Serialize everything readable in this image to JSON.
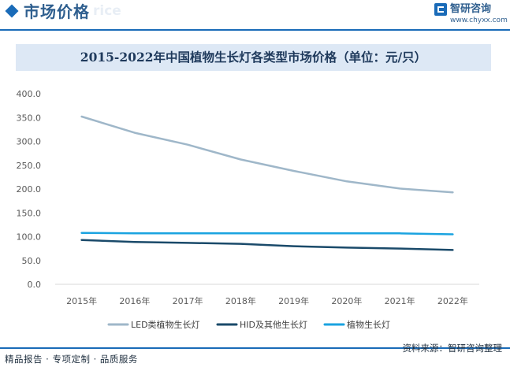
{
  "header": {
    "title": "市场价格",
    "watermark": "rice",
    "logo_name": "智研咨询",
    "logo_url": "www.chyxx.com"
  },
  "colors": {
    "brand": "#1a6bb8",
    "header_text": "#2f5f8f",
    "title_bar": "#dde8f5",
    "led": "#9fb7c9",
    "hid": "#1a4a6a",
    "plant": "#1aa3e0"
  },
  "footer": {
    "left": "精品报告 · 专项定制 · 品质服务",
    "source": "资料来源：智研咨询整理"
  },
  "chart_data": {
    "type": "line",
    "title": "2015-2022年中国植物生长灯各类型市场价格（单位：元/只）",
    "categories": [
      "2015年",
      "2016年",
      "2017年",
      "2018年",
      "2019年",
      "2020年",
      "2021年",
      "2022年"
    ],
    "ylim": [
      0,
      400
    ],
    "y_ticks": [
      "0.0",
      "50.0",
      "100.0",
      "150.0",
      "200.0",
      "250.0",
      "300.0",
      "350.0",
      "400.0"
    ],
    "grid": false,
    "legend_position": "bottom",
    "series": [
      {
        "name": "LED类植物生长灯",
        "color": "#9fb7c9",
        "values": [
          352,
          318,
          293,
          262,
          238,
          216,
          201,
          193
        ]
      },
      {
        "name": "HID及其他生长灯",
        "color": "#1a4a6a",
        "values": [
          93,
          89,
          87,
          85,
          80,
          77,
          75,
          72
        ]
      },
      {
        "name": "植物生长灯",
        "color": "#1aa3e0",
        "values": [
          108,
          107,
          107,
          107,
          107,
          107,
          107,
          105
        ]
      }
    ]
  }
}
